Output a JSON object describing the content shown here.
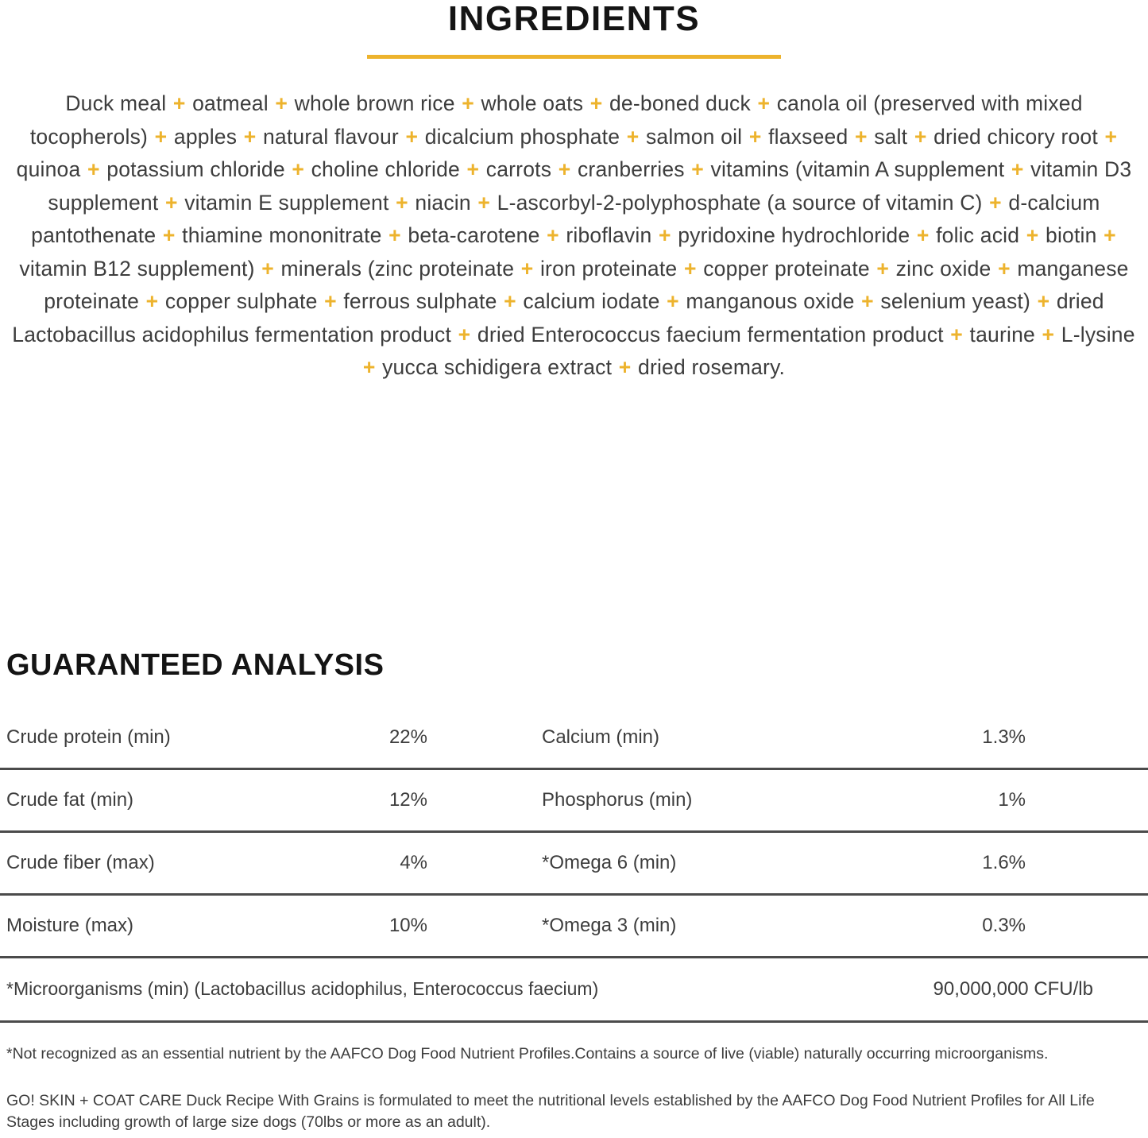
{
  "colors": {
    "accent_gold": "#EDB32D",
    "divider_gray": "#4B4B4B",
    "body_text": "#3D3D3D",
    "heading_black": "#141414"
  },
  "ingredients": {
    "title": "INGREDIENTS",
    "separator": "+",
    "items": [
      "Duck meal",
      "oatmeal",
      "whole brown rice",
      "whole oats",
      "de-boned duck",
      "canola oil (preserved with mixed tocopherols)",
      "apples",
      "natural flavour",
      "dicalcium phosphate",
      "salmon oil",
      "flaxseed",
      "salt",
      "dried chicory root",
      "quinoa",
      "potassium chloride",
      "choline chloride",
      "carrots",
      "cranberries",
      "vitamins (vitamin A supplement",
      "vitamin D3 supplement",
      "vitamin E supplement",
      "niacin",
      "L-ascorbyl-2-polyphosphate (a source of vitamin C)",
      "d-calcium pantothenate",
      "thiamine mononitrate",
      "beta-carotene",
      "riboflavin",
      "pyridoxine hydrochloride",
      "folic acid",
      "biotin",
      "vitamin B12 supplement)",
      "minerals (zinc proteinate",
      "iron proteinate",
      "copper proteinate",
      "zinc oxide",
      "manganese proteinate",
      "copper sulphate",
      "ferrous sulphate",
      "calcium iodate",
      "manganous oxide",
      "selenium yeast)",
      "dried Lactobacillus acidophilus fermentation product",
      "dried Enterococcus faecium fermentation product",
      "taurine",
      "L-lysine",
      "yucca schidigera extract",
      "dried rosemary."
    ]
  },
  "analysis": {
    "title": "GUARANTEED ANALYSIS",
    "rows": [
      {
        "left_label": "Crude protein (min)",
        "left_value": "22%",
        "right_label": "Calcium (min)",
        "right_value": "1.3%"
      },
      {
        "left_label": "Crude fat (min)",
        "left_value": "12%",
        "right_label": "Phosphorus (min)",
        "right_value": "1%"
      },
      {
        "left_label": "Crude fiber (max)",
        "left_value": "4%",
        "right_label": "*Omega 6 (min)",
        "right_value": "1.6%"
      },
      {
        "left_label": "Moisture (max)",
        "left_value": "10%",
        "right_label": "*Omega 3 (min)",
        "right_value": "0.3%"
      }
    ],
    "full_width_row": {
      "label": "*Microorganisms (min) (Lactobacillus acidophilus, Enterococcus faecium)",
      "value": "90,000,000 CFU/lb"
    }
  },
  "footnotes": [
    "*Not recognized as an essential nutrient by the AAFCO Dog Food Nutrient Profiles.Contains a source of live (viable) naturally occurring microorganisms.",
    "GO! SKIN + COAT CARE Duck Recipe With Grains is formulated to meet the nutritional levels established by the AAFCO Dog Food Nutrient Profiles for All Life Stages including growth of large size dogs (70lbs or more as an adult)."
  ]
}
